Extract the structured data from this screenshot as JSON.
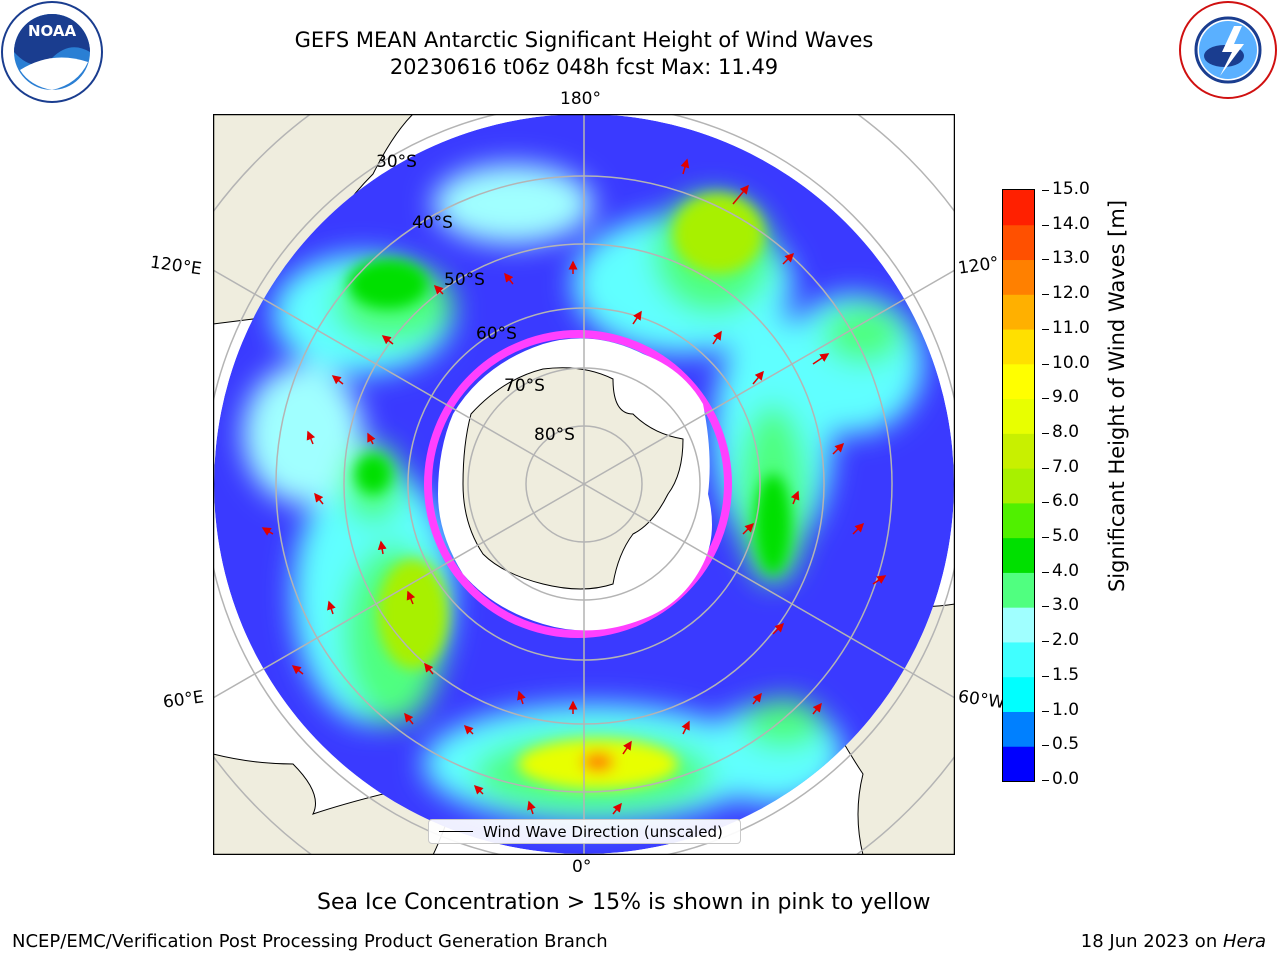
{
  "title_line1": "GEFS MEAN Antarctic Significant Height of Wind Waves",
  "title_line2": "20230616 t06z 048h fcst   Max: 11.49",
  "map": {
    "projection": "south-polar-stereographic",
    "lon_labels": {
      "top": "180°",
      "bottom": "0°",
      "upper_left": "120°E",
      "upper_right": "120°",
      "lower_left": "60°E",
      "lower_right": "60°W"
    },
    "lat_labels": [
      "30°S",
      "40°S",
      "50°S",
      "60°S",
      "70°S",
      "80°S"
    ],
    "legend": "Wind Wave Direction (unscaled)",
    "land_color": "#efedde",
    "ice_colors": [
      "#ff00ff",
      "#ffa500",
      "#ffff00"
    ]
  },
  "colorbar": {
    "label": "Significant Height of Wind Waves [m]",
    "ticks": [
      "0.0",
      "0.5",
      "1.0",
      "1.5",
      "2.0",
      "3.0",
      "4.0",
      "5.0",
      "6.0",
      "7.0",
      "8.0",
      "9.0",
      "10.0",
      "11.0",
      "12.0",
      "13.0",
      "14.0",
      "15.0"
    ],
    "colors": [
      "#0000ff",
      "#0080ff",
      "#00ffff",
      "#40ffff",
      "#a0ffff",
      "#50ff80",
      "#00e000",
      "#50f000",
      "#a8f000",
      "#c8f000",
      "#e8ff00",
      "#ffff00",
      "#ffe000",
      "#ffb000",
      "#ff8000",
      "#ff5000",
      "#ff2000"
    ]
  },
  "caption": "Sea Ice Concentration > 15% is shown in pink to yellow",
  "footer_left": "NCEP/EMC/Verification Post Processing Product Generation Branch",
  "footer_right_date": "18 Jun 2023 on ",
  "footer_right_machine": "Hera",
  "logos": {
    "left": "NOAA",
    "right": "NATIONAL WEATHER SERVICE"
  }
}
